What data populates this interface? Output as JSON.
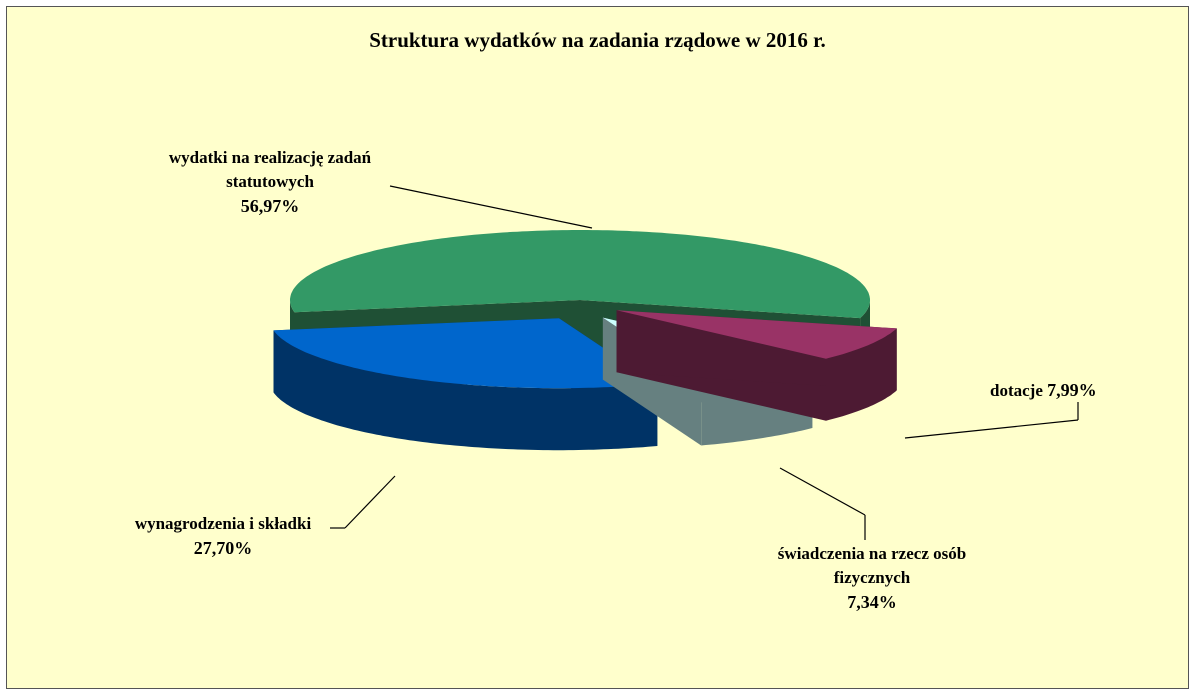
{
  "chart_data": {
    "type": "pie",
    "three_d": true,
    "title": "Struktura wydatków na zadania rządowe w 2016 r.",
    "categories": [
      "wydatki na realizację zadań statutowych",
      "wynagrodzenia i składki",
      "świadczenia na rzecz osób fizycznych",
      "dotacje"
    ],
    "values": [
      56.97,
      27.7,
      7.34,
      7.99
    ],
    "value_labels": [
      "56,97%",
      "27,70%",
      "7,34%",
      "7,99%"
    ],
    "colors": [
      "#339966",
      "#0066cc",
      "#ccffff",
      "#993366"
    ],
    "side_colors": [
      "#1f5035",
      "#003366",
      "#668080",
      "#4d1a33"
    ]
  }
}
